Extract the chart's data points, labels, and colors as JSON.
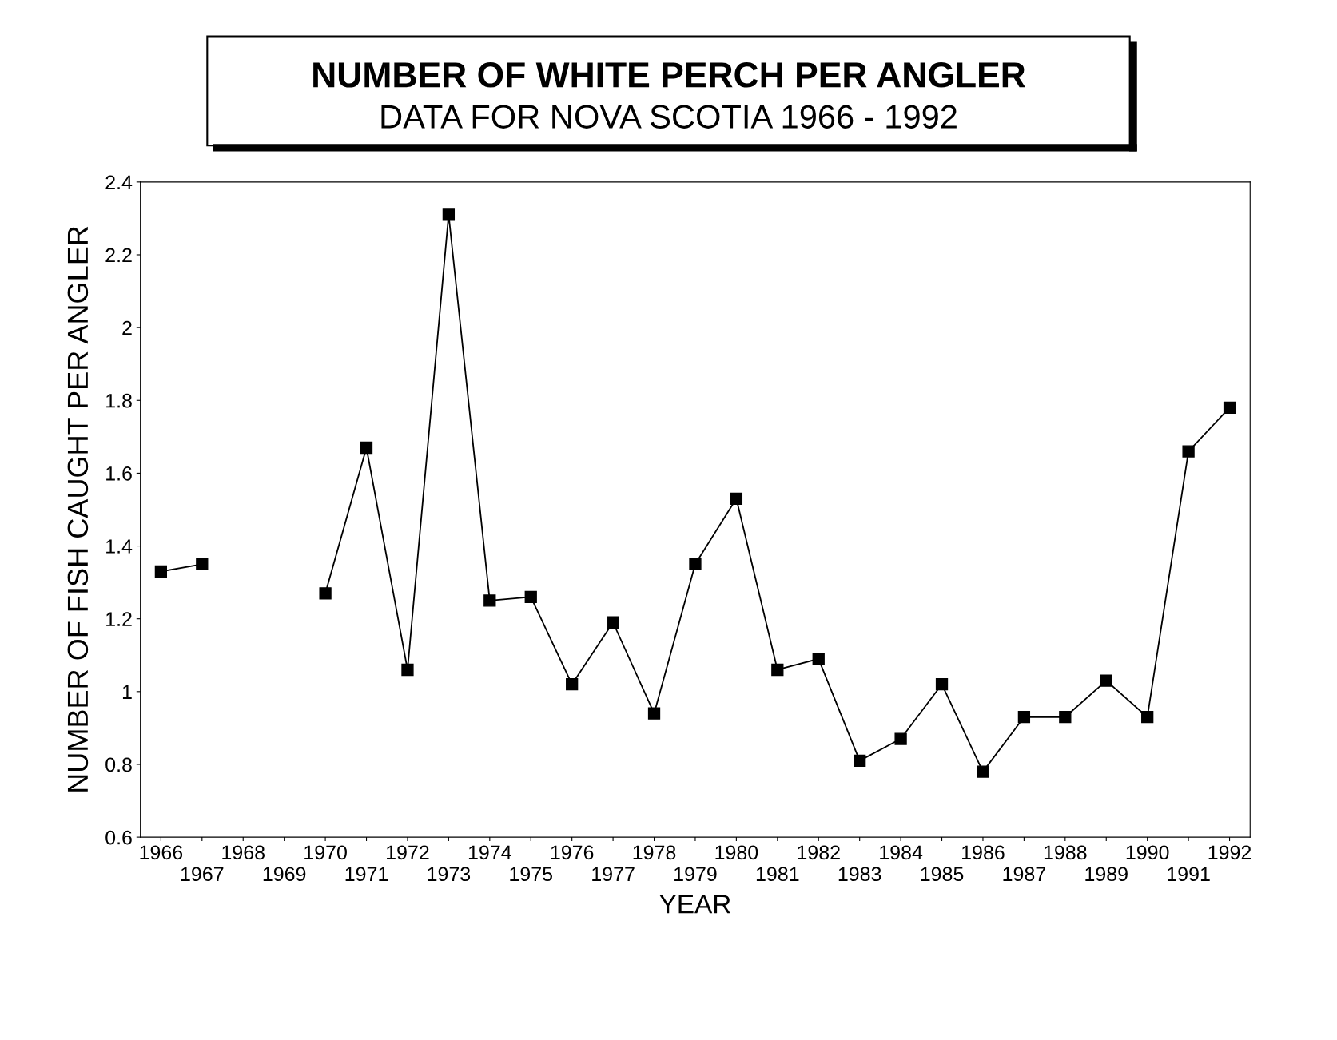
{
  "chart_data": {
    "type": "line",
    "title": "NUMBER OF WHITE PERCH PER ANGLER",
    "subtitle": "DATA FOR NOVA SCOTIA 1966 - 1992",
    "xlabel": "YEAR",
    "ylabel": "NUMBER OF FISH CAUGHT PER ANGLER",
    "categories": [
      "1966",
      "1967",
      "1968",
      "1969",
      "1970",
      "1971",
      "1972",
      "1973",
      "1974",
      "1975",
      "1976",
      "1977",
      "1978",
      "1979",
      "1980",
      "1981",
      "1982",
      "1983",
      "1984",
      "1985",
      "1986",
      "1987",
      "1988",
      "1989",
      "1990",
      "1991",
      "1992"
    ],
    "series": [
      {
        "color": "#000000",
        "values": [
          1.33,
          1.35,
          null,
          null,
          1.27,
          1.67,
          1.06,
          2.31,
          1.25,
          1.26,
          1.02,
          1.19,
          0.94,
          1.35,
          1.53,
          1.06,
          1.09,
          0.81,
          0.87,
          1.02,
          0.78,
          0.93,
          0.93,
          1.03,
          0.93,
          1.66,
          1.78
        ]
      }
    ],
    "ylim": [
      0.6,
      2.4
    ],
    "yticks": [
      0.6,
      0.8,
      1,
      1.2,
      1.4,
      1.6,
      1.8,
      2,
      2.2,
      2.4
    ],
    "grid": false,
    "marker": "square",
    "line_style": "solid"
  }
}
